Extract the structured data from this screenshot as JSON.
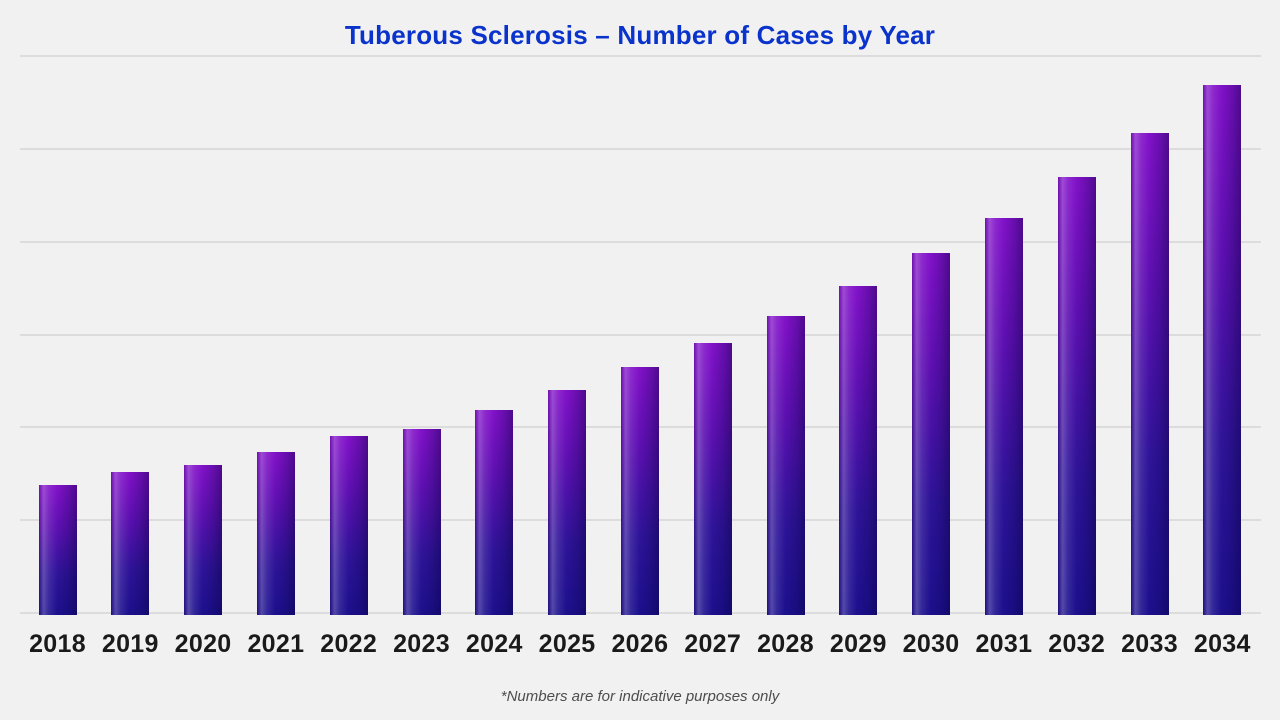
{
  "page": {
    "background_color": "#f2f1f2",
    "footnote": "*Numbers are for indicative purposes only"
  },
  "header": {
    "title": "Tuberous Sclerosis – Number of Cases by Year",
    "title_color": "#0a33cc"
  },
  "chart_data": {
    "type": "bar",
    "title": "Tuberous Sclerosis – Number of Cases by Year",
    "categories": [
      "2018",
      "2019",
      "2020",
      "2021",
      "2022",
      "2023",
      "2024",
      "2025",
      "2026",
      "2027",
      "2028",
      "2029",
      "2030",
      "2031",
      "2032",
      "2033",
      "2034"
    ],
    "values": [
      138,
      152,
      159,
      173,
      191,
      198,
      219,
      240,
      265,
      291,
      320,
      352,
      388,
      426,
      470,
      517,
      569
    ],
    "values_note": "y-axis is unlabeled; values estimated from gridlines (1 gridline interval = 100)",
    "xlabel": "",
    "ylabel": "",
    "ylim": [
      0,
      600
    ],
    "gridline_interval": 100,
    "grid": "horizontal",
    "y_tick_labels_visible": false,
    "legend": "none",
    "footnote": "*Numbers are for indicative purposes only",
    "colors": {
      "bar_top": "#8212c9",
      "bar_bottom": "#1c108d",
      "gridline": "#dcdcdc",
      "x_tick_label": "#1a1a1a",
      "title": "#0a33cc",
      "footnote_text": "#4d4d4d",
      "background": "#f2f1f2"
    }
  }
}
